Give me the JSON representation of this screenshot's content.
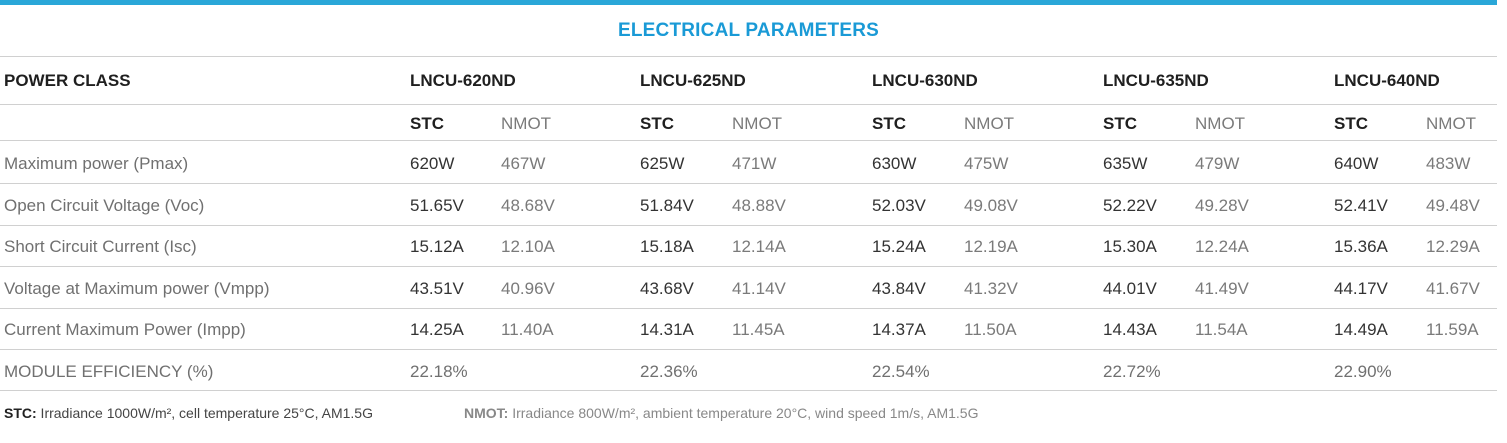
{
  "title": "ELECTRICAL PARAMETERS",
  "accent_color": "#1a9ad6",
  "power_class_label": "POWER CLASS",
  "models": [
    "LNCU-620ND",
    "LNCU-625ND",
    "LNCU-630ND",
    "LNCU-635ND",
    "LNCU-640ND"
  ],
  "sub_headers": {
    "stc": "STC",
    "nmot": "NMOT"
  },
  "rows": [
    {
      "label": "Maximum power (Pmax)",
      "stc": [
        "620W",
        "625W",
        "630W",
        "635W",
        "640W"
      ],
      "nmot": [
        "467W",
        "471W",
        "475W",
        "479W",
        "483W"
      ]
    },
    {
      "label": "Open Circuit Voltage (Voc)",
      "stc": [
        "51.65V",
        "51.84V",
        "52.03V",
        "52.22V",
        "52.41V"
      ],
      "nmot": [
        "48.68V",
        "48.88V",
        "49.08V",
        "49.28V",
        "49.48V"
      ]
    },
    {
      "label": "Short Circuit Current (Isc)",
      "stc": [
        "15.12A",
        "15.18A",
        "15.24A",
        "15.30A",
        "15.36A"
      ],
      "nmot": [
        "12.10A",
        "12.14A",
        "12.19A",
        "12.24A",
        "12.29A"
      ]
    },
    {
      "label": "Voltage at Maximum power (Vmpp)",
      "stc": [
        "43.51V",
        "43.68V",
        "43.84V",
        "44.01V",
        "44.17V"
      ],
      "nmot": [
        "40.96V",
        "41.14V",
        "41.32V",
        "41.49V",
        "41.67V"
      ]
    },
    {
      "label": "Current Maximum Power (Impp)",
      "stc": [
        "14.25A",
        "14.31A",
        "14.37A",
        "14.43A",
        "14.49A"
      ],
      "nmot": [
        "11.40A",
        "11.45A",
        "11.50A",
        "11.54A",
        "11.59A"
      ]
    }
  ],
  "efficiency": {
    "label": "MODULE EFFICIENCY (%)",
    "values": [
      "22.18%",
      "22.36%",
      "22.54%",
      "22.72%",
      "22.90%"
    ]
  },
  "footnotes": {
    "stc_key": "STC:",
    "stc_text": " Irradiance 1000W/m², cell temperature 25°C, AM1.5G",
    "nmot_key": "NMOT:",
    "nmot_text": " Irradiance 800W/m², ambient temperature 20°C, wind speed 1m/s, AM1.5G"
  }
}
